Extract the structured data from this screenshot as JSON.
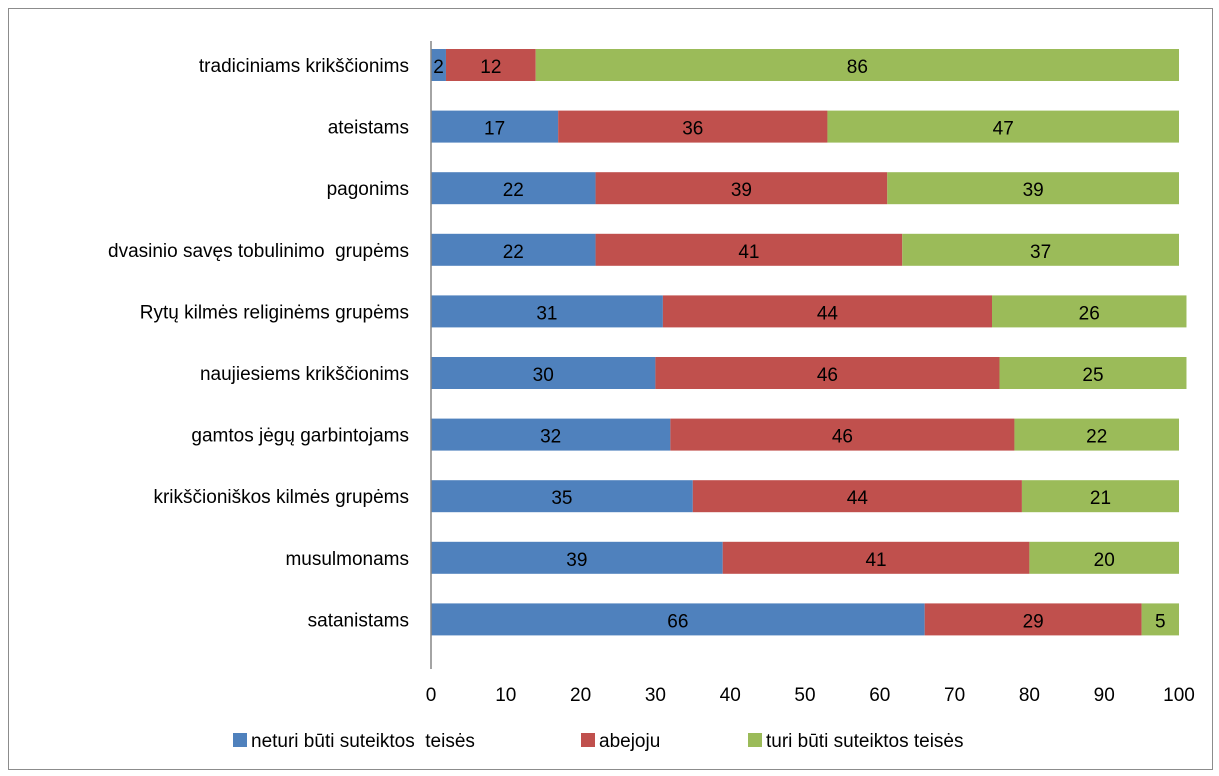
{
  "chart_data": {
    "type": "bar",
    "orientation": "horizontal",
    "stacked": true,
    "categories": [
      "tradiciniams krikščionims",
      "ateistams",
      "pagonims",
      "dvasinio savęs tobulinimo  grupėms",
      "Rytų kilmės religinėms grupėms",
      "naujiesiems krikščionims",
      "gamtos jėgų garbintojams",
      "krikščioniškos kilmės grupėms",
      "musulmonams",
      "satanistams"
    ],
    "series": [
      {
        "name": "neturi būti suteiktos  teisės",
        "color": "#4f81bd",
        "values": [
          2,
          17,
          22,
          22,
          31,
          30,
          32,
          35,
          39,
          66
        ]
      },
      {
        "name": "abejoju",
        "color": "#c0504d",
        "values": [
          12,
          36,
          39,
          41,
          44,
          46,
          46,
          44,
          41,
          29
        ]
      },
      {
        "name": "turi būti suteiktos teisės",
        "color": "#9bbb59",
        "values": [
          86,
          47,
          39,
          37,
          26,
          25,
          22,
          21,
          20,
          5
        ]
      }
    ],
    "xlim": [
      0,
      100
    ],
    "xticks": [
      "0",
      "10",
      "20",
      "30",
      "40",
      "50",
      "60",
      "70",
      "80",
      "90",
      "100"
    ],
    "title": "",
    "xlabel": "",
    "ylabel": "",
    "grid": false,
    "legend_position": "bottom"
  }
}
